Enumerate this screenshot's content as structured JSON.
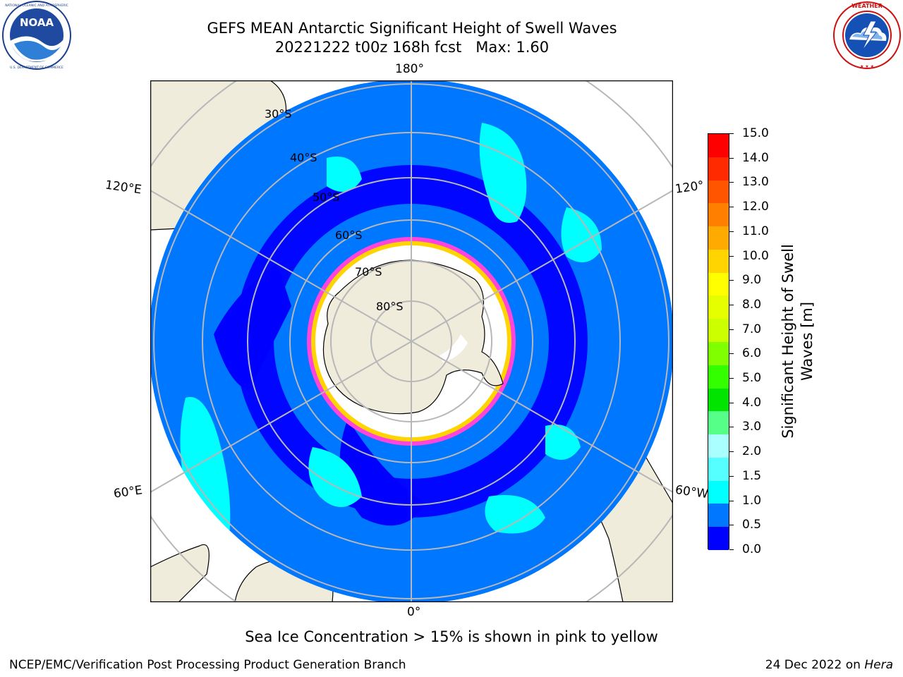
{
  "header": {
    "title_line1": "GEFS MEAN Antarctic Significant Height of Swell Waves",
    "title_line2": "20221222 t00z 168h fcst   Max: 1.60"
  },
  "logos": {
    "left": {
      "icon": "noaa-logo",
      "text": "NOAA",
      "ring_text": "NATIONAL OCEANIC AND ATMOSPHERIC ADMINISTRATION · U.S. DEPARTMENT OF COMMERCE"
    },
    "right": {
      "icon": "national-weather-service-logo",
      "ring_text": "NATIONAL WEATHER SERVICE"
    }
  },
  "map": {
    "projection": "south-polar-stereographic",
    "colors": {
      "land": "#efecdc",
      "sea_ice_outline": "#ff44dd",
      "grid": "#b7b7b7"
    },
    "longitude_labels": {
      "top": "180°",
      "bottom": "0°",
      "upper_left": "120°E",
      "lower_left": "60°E",
      "upper_right": "120°",
      "lower_right": "60°W"
    },
    "latitude_labels": [
      "30°S",
      "40°S",
      "50°S",
      "60°S",
      "70°S",
      "80°S"
    ]
  },
  "colorbar": {
    "title": "Significant Height of Swell Waves [m]",
    "title_lines": [
      "Significant Height of Swell",
      "Waves [m]"
    ],
    "levels": [
      "15.0",
      "14.0",
      "13.0",
      "12.0",
      "11.0",
      "10.0",
      "9.0",
      "8.0",
      "7.0",
      "6.0",
      "5.0",
      "4.0",
      "3.0",
      "2.0",
      "1.5",
      "1.0",
      "0.5",
      "0.0"
    ],
    "colors": [
      "#ff0000",
      "#ff2a00",
      "#ff5500",
      "#ff8000",
      "#ffaa00",
      "#ffd400",
      "#ffff00",
      "#e5ff00",
      "#ccff00",
      "#80ff00",
      "#33ff00",
      "#00e400",
      "#55ff88",
      "#aaffff",
      "#55ffff",
      "#00ffff",
      "#0077ff",
      "#0000ff"
    ]
  },
  "footer": {
    "note": "Sea Ice Concentration > 15% is shown in pink to yellow",
    "credit": "NCEP/EMC/Verification Post Processing Product Generation Branch",
    "date": "24 Dec 2022 on",
    "machine": "Hera"
  }
}
